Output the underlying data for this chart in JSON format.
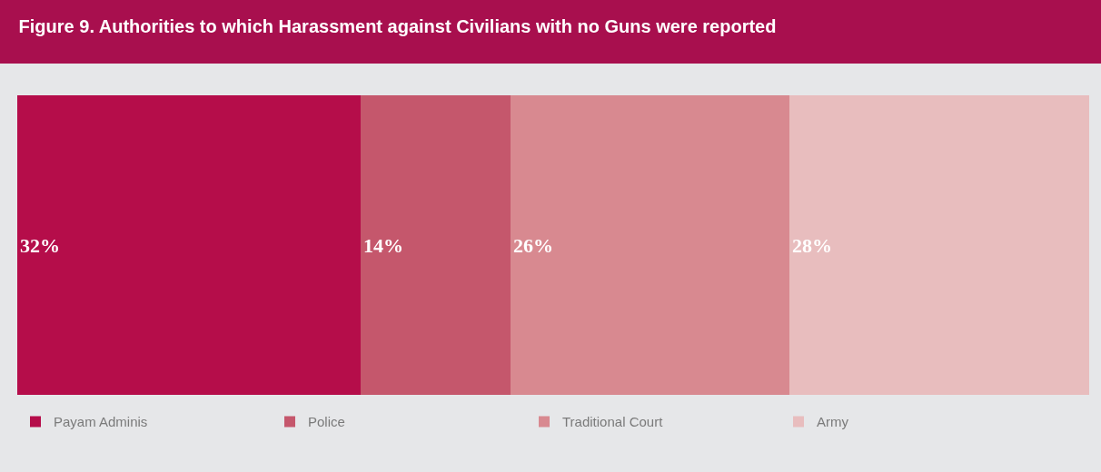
{
  "chart_data": {
    "type": "bar",
    "orientation": "horizontal",
    "stacked": true,
    "title": "Figure 9. Authorities to which Harassment against Civilians with no Guns were reported",
    "categories": [
      null
    ],
    "xlim": [
      0,
      100
    ],
    "tick_labels": false,
    "legend": "bottom left",
    "series": [
      {
        "name": "Payam Adminis",
        "color": "#b50d4a",
        "values": [
          32
        ],
        "value_labels": [
          "32%"
        ]
      },
      {
        "name": "Police",
        "color": "#c5576c",
        "values": [
          14
        ],
        "value_labels": [
          "14%"
        ]
      },
      {
        "name": "Traditional Court",
        "color": "#d88990",
        "values": [
          26
        ],
        "value_labels": [
          "26%"
        ]
      },
      {
        "name": "Army",
        "color": "#e8bdbe",
        "values": [
          28
        ],
        "value_labels": [
          "28%"
        ]
      }
    ]
  }
}
